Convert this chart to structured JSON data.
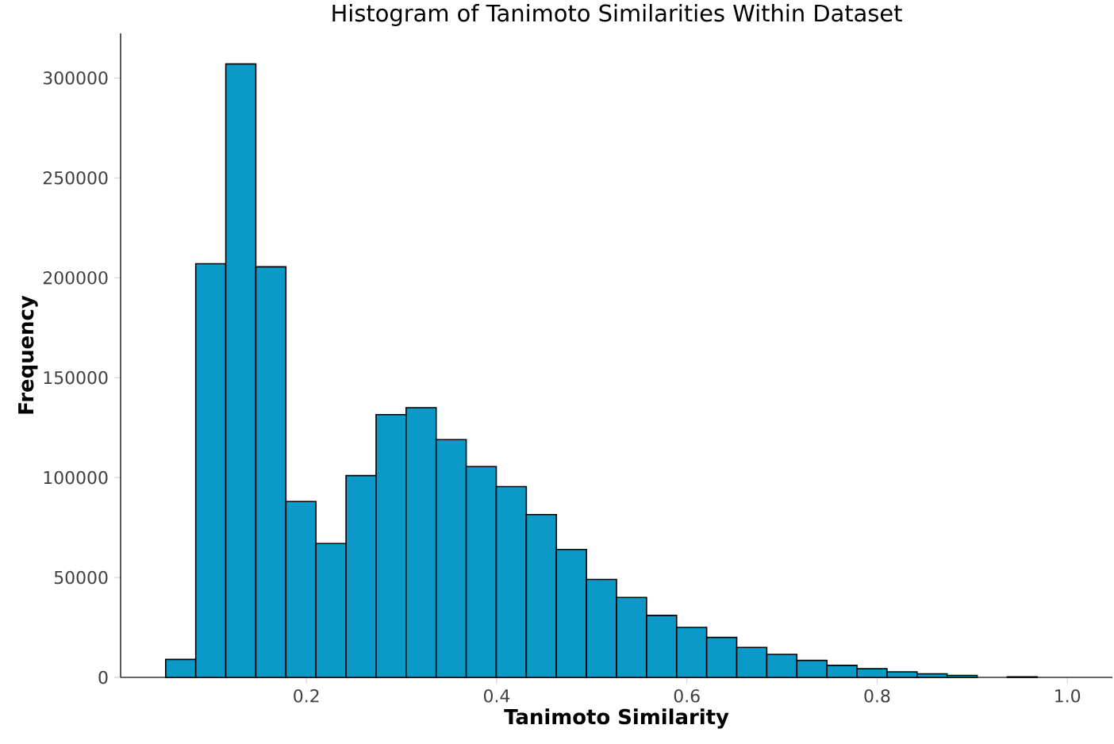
{
  "chart_data": {
    "type": "histogram",
    "title": "Histogram of Tanimoto Similarities Within Dataset",
    "xlabel": "Tanimoto Similarity",
    "ylabel": "Frequency",
    "bins": [
      0.052,
      0.0836,
      0.1152,
      0.1468,
      0.1784,
      0.21,
      0.2416,
      0.2732,
      0.3048,
      0.3364,
      0.368,
      0.3996,
      0.4312,
      0.4628,
      0.4944,
      0.526,
      0.5576,
      0.5892,
      0.6208,
      0.6524,
      0.684,
      0.7156,
      0.7472,
      0.7788,
      0.8104,
      0.842,
      0.8736,
      0.9052,
      0.9368,
      0.9684,
      1.0
    ],
    "values": [
      9000,
      207000,
      307000,
      205500,
      88000,
      67000,
      101000,
      131500,
      135000,
      119000,
      105500,
      95500,
      81500,
      64000,
      49000,
      40000,
      31000,
      25000,
      20000,
      15000,
      11500,
      8500,
      6000,
      4300,
      2800,
      1800,
      1000,
      null,
      300,
      null
    ],
    "color": "#0b9ac8",
    "xlim": [
      0.0046,
      1.0474
    ],
    "ylim": [
      0,
      322350
    ],
    "xticks": [
      0.2,
      0.4,
      0.6,
      0.8,
      {
        "value": 1.0,
        "label": "1.0"
      }
    ],
    "yticks": [
      0,
      50000,
      100000,
      150000,
      200000,
      250000,
      300000
    ]
  }
}
